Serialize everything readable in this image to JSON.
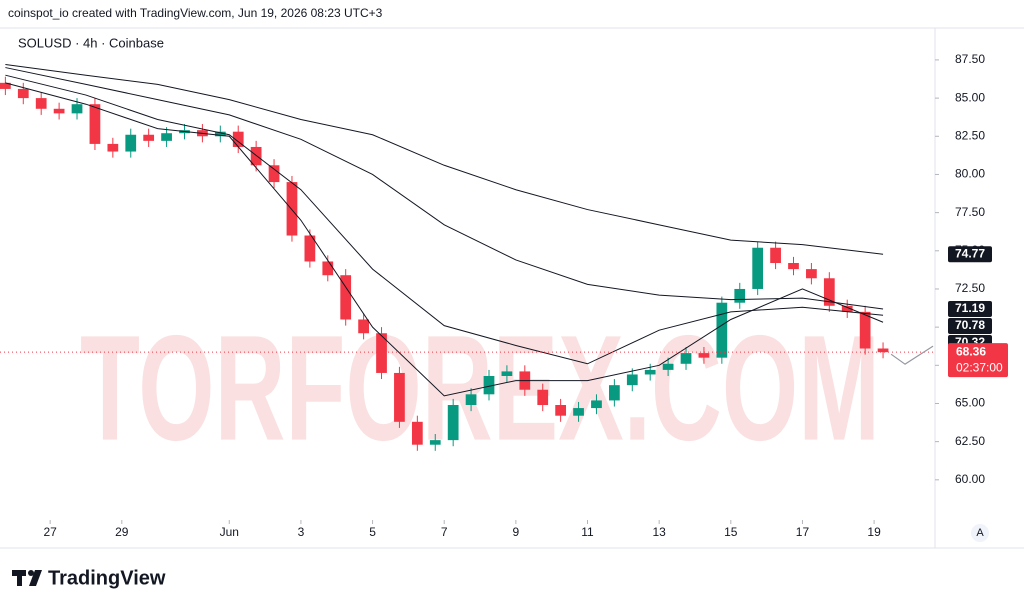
{
  "header": "coinspot_io created with TradingView.com, Jun 19, 2026 08:23 UTC+3",
  "footer_logo": "TradingView",
  "chart_data": {
    "type": "candlestick",
    "title": "SOLUSD · 4h · Coinbase",
    "watermark": "TORFOREX.COM",
    "up_color": "#089981",
    "down_color": "#f23645",
    "x": [
      -1.25,
      -0.75,
      -0.25,
      0.25,
      0.75,
      1.25,
      1.75,
      2.25,
      2.75,
      3.25,
      3.75,
      4.25,
      4.75,
      5.25,
      5.75,
      6.25,
      6.75,
      7.25,
      7.75,
      8.25,
      8.75,
      9.25,
      9.75,
      10.25,
      10.75,
      11.25,
      11.75,
      12.25,
      12.75,
      13.25,
      13.75,
      14.25,
      14.75,
      15.25,
      15.75,
      16.25,
      16.75,
      17.25,
      17.75,
      18.25,
      18.75,
      19.25,
      19.75,
      20.25,
      20.75,
      21.25,
      21.75,
      22.25,
      22.75,
      23.25
    ],
    "open": [
      86.0,
      85.6,
      85.0,
      84.3,
      84.0,
      84.6,
      82.0,
      81.5,
      82.6,
      82.2,
      82.7,
      82.9,
      82.5,
      82.8,
      81.8,
      80.6,
      79.5,
      76.0,
      74.3,
      73.4,
      70.5,
      69.6,
      67.0,
      63.8,
      62.3,
      62.6,
      64.9,
      65.6,
      66.8,
      67.1,
      65.9,
      64.9,
      64.2,
      64.7,
      65.2,
      66.2,
      66.9,
      67.2,
      67.6,
      68.3,
      68.0,
      71.6,
      72.5,
      75.2,
      74.2,
      73.8,
      73.2,
      71.4,
      71.0,
      68.6
    ],
    "high": [
      86.4,
      86.0,
      85.4,
      84.7,
      85.0,
      85.0,
      82.4,
      83.0,
      83.0,
      83.1,
      83.3,
      83.3,
      83.2,
      83.2,
      82.2,
      81.0,
      79.9,
      76.4,
      74.7,
      73.8,
      70.9,
      70.0,
      67.4,
      64.2,
      63.0,
      65.3,
      66.0,
      67.2,
      67.5,
      67.5,
      66.3,
      65.3,
      65.1,
      65.6,
      66.6,
      67.3,
      67.6,
      68.0,
      68.7,
      68.7,
      72.0,
      72.9,
      75.6,
      75.6,
      74.6,
      74.2,
      73.6,
      71.8,
      71.4,
      69.0
    ],
    "low": [
      85.2,
      84.6,
      83.9,
      83.6,
      83.6,
      81.6,
      81.1,
      81.1,
      81.8,
      81.8,
      82.3,
      82.1,
      82.1,
      81.4,
      80.2,
      79.1,
      75.6,
      73.9,
      73.0,
      70.1,
      69.2,
      66.6,
      63.4,
      61.9,
      61.9,
      62.2,
      64.5,
      65.2,
      66.4,
      65.5,
      64.5,
      63.8,
      63.8,
      64.3,
      64.8,
      65.8,
      66.5,
      66.8,
      67.2,
      67.6,
      67.6,
      71.2,
      72.1,
      73.8,
      73.4,
      72.8,
      71.0,
      70.6,
      68.2,
      67.96
    ],
    "close": [
      85.6,
      85.0,
      84.3,
      84.0,
      84.6,
      82.0,
      81.5,
      82.6,
      82.2,
      82.7,
      82.9,
      82.5,
      82.8,
      81.8,
      80.6,
      79.5,
      76.0,
      74.3,
      73.4,
      70.5,
      69.6,
      67.0,
      63.8,
      62.3,
      62.6,
      64.9,
      65.6,
      66.8,
      67.1,
      65.9,
      64.9,
      64.2,
      64.7,
      65.2,
      66.2,
      66.9,
      67.2,
      67.6,
      68.3,
      68.0,
      71.6,
      72.5,
      75.2,
      74.2,
      73.8,
      73.2,
      71.4,
      71.0,
      68.6,
      68.36
    ],
    "countdown": "02:37:00",
    "series": [
      {
        "color": "#131722",
        "x": [
          -1.25,
          1,
          3,
          5,
          7,
          9,
          11,
          13,
          15,
          17,
          19,
          21,
          23.25
        ],
        "values": [
          87.2,
          86.5,
          85.9,
          84.9,
          83.6,
          82.6,
          80.6,
          79.0,
          77.7,
          76.7,
          75.7,
          75.4,
          74.77
        ]
      },
      {
        "color": "#131722",
        "x": [
          -1.25,
          1,
          3,
          5,
          7,
          9,
          11,
          13,
          15,
          17,
          19,
          21,
          23.25
        ],
        "values": [
          87.0,
          85.9,
          84.9,
          83.9,
          82.3,
          80.0,
          76.7,
          74.4,
          72.8,
          72.1,
          71.8,
          71.9,
          71.19
        ]
      },
      {
        "color": "#131722",
        "x": [
          -1.25,
          1,
          3,
          5,
          7,
          9,
          11,
          13,
          15,
          17,
          19,
          21,
          23.25
        ],
        "values": [
          86.5,
          85.2,
          83.6,
          82.6,
          79.0,
          73.8,
          70.1,
          68.8,
          67.6,
          69.8,
          71.0,
          71.3,
          70.78
        ]
      },
      {
        "color": "#131722",
        "x": [
          -1.25,
          1,
          3,
          5,
          7,
          9,
          11,
          13,
          15,
          17,
          19,
          21,
          23.25
        ],
        "values": [
          86.0,
          84.6,
          83.0,
          82.5,
          77.0,
          70.0,
          65.5,
          66.5,
          66.5,
          67.5,
          70.5,
          72.5,
          70.32
        ]
      }
    ],
    "xlim": [
      -1.4,
      24.7
    ],
    "ylim": [
      57.5,
      89.46
    ],
    "xticks": [
      {
        "value": 0,
        "label": "27"
      },
      {
        "value": 2,
        "label": "29"
      },
      {
        "value": 5,
        "label": "Jun"
      },
      {
        "value": 7,
        "label": "3"
      },
      {
        "value": 9,
        "label": "5"
      },
      {
        "value": 11,
        "label": "7"
      },
      {
        "value": 13,
        "label": "9"
      },
      {
        "value": 15,
        "label": "11"
      },
      {
        "value": 17,
        "label": "13"
      },
      {
        "value": 19,
        "label": "15"
      },
      {
        "value": 21,
        "label": "17"
      },
      {
        "value": 23,
        "label": "19"
      }
    ],
    "yticks": [
      {
        "value": 60,
        "label": "60.00"
      },
      {
        "value": 62.5,
        "label": "62.50"
      },
      {
        "value": 65,
        "label": "65.00"
      },
      {
        "value": 67.5,
        "label": "67.50"
      },
      {
        "value": 70,
        "label": "70.00"
      },
      {
        "value": 72.5,
        "label": "72.50"
      },
      {
        "value": 75,
        "label": "75.00"
      },
      {
        "value": 77.5,
        "label": "77.50"
      },
      {
        "value": 80,
        "label": "80.00"
      },
      {
        "value": 82.5,
        "label": "82.50"
      },
      {
        "value": 85,
        "label": "85.00"
      },
      {
        "value": 87.5,
        "label": "87.50"
      }
    ],
    "scale_button": "A"
  }
}
